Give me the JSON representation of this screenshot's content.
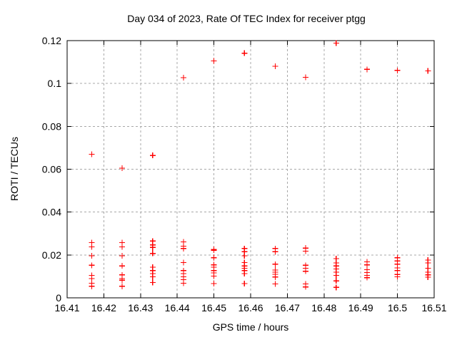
{
  "chart_data": {
    "type": "scatter",
    "title": "Day 034 of 2023, Rate Of TEC Index for receiver ptgg",
    "xlabel": "GPS time / hours",
    "ylabel": "ROTI / TECUs",
    "xlim": [
      16.41,
      16.51
    ],
    "ylim": [
      0,
      0.12
    ],
    "xticks": [
      16.41,
      16.42,
      16.43,
      16.44,
      16.45,
      16.46,
      16.47,
      16.48,
      16.49,
      16.5,
      16.51
    ],
    "xtick_labels": [
      "16.41",
      "16.42",
      "16.43",
      "16.44",
      "16.45",
      "16.46",
      "16.47",
      "16.48",
      "16.49",
      "16.5",
      "16.51"
    ],
    "yticks": [
      0,
      0.02,
      0.04,
      0.06,
      0.08,
      0.1,
      0.12
    ],
    "ytick_labels": [
      "0",
      "0.02",
      "0.04",
      "0.06",
      "0.08",
      "0.1",
      "0.12"
    ],
    "grid": true,
    "grid_style": "dashed",
    "legend": "none",
    "marker": "plus",
    "marker_color": "#ff0000",
    "grid_color": "#a8a8a8",
    "axis_color": "#000000",
    "background_color": "#ffffff",
    "series": [
      {
        "name": "ROTI",
        "points": [
          [
            16.4167,
            0.067
          ],
          [
            16.4167,
            0.0258
          ],
          [
            16.4167,
            0.0238
          ],
          [
            16.4167,
            0.0196
          ],
          [
            16.4167,
            0.0152
          ],
          [
            16.4167,
            0.0105
          ],
          [
            16.4167,
            0.009
          ],
          [
            16.4167,
            0.0068
          ],
          [
            16.4167,
            0.0054
          ],
          [
            16.425,
            0.0605
          ],
          [
            16.425,
            0.0258
          ],
          [
            16.425,
            0.0238
          ],
          [
            16.425,
            0.0196
          ],
          [
            16.425,
            0.0149
          ],
          [
            16.425,
            0.0107
          ],
          [
            16.425,
            0.009
          ],
          [
            16.425,
            0.0082
          ],
          [
            16.425,
            0.0054
          ],
          [
            16.4333,
            0.0664
          ],
          [
            16.4333,
            0.0265
          ],
          [
            16.4333,
            0.0247
          ],
          [
            16.4333,
            0.0235
          ],
          [
            16.4333,
            0.0207
          ],
          [
            16.4333,
            0.0143
          ],
          [
            16.4333,
            0.0127
          ],
          [
            16.4333,
            0.0113
          ],
          [
            16.4333,
            0.0098
          ],
          [
            16.4333,
            0.0071
          ],
          [
            16.4417,
            0.1027
          ],
          [
            16.4417,
            0.0261
          ],
          [
            16.4417,
            0.0241
          ],
          [
            16.4417,
            0.023
          ],
          [
            16.4417,
            0.0165
          ],
          [
            16.4417,
            0.0127
          ],
          [
            16.4417,
            0.0113
          ],
          [
            16.4417,
            0.0098
          ],
          [
            16.4417,
            0.0085
          ],
          [
            16.4417,
            0.0068
          ],
          [
            16.45,
            0.1105
          ],
          [
            16.45,
            0.0226
          ],
          [
            16.45,
            0.0222
          ],
          [
            16.45,
            0.0187
          ],
          [
            16.45,
            0.0154
          ],
          [
            16.45,
            0.0143
          ],
          [
            16.45,
            0.0127
          ],
          [
            16.45,
            0.0116
          ],
          [
            16.45,
            0.0101
          ],
          [
            16.45,
            0.0066
          ],
          [
            16.4583,
            0.1141
          ],
          [
            16.4583,
            0.023
          ],
          [
            16.4583,
            0.0215
          ],
          [
            16.4583,
            0.0196
          ],
          [
            16.4583,
            0.0165
          ],
          [
            16.4583,
            0.0149
          ],
          [
            16.4583,
            0.0138
          ],
          [
            16.4583,
            0.0127
          ],
          [
            16.4583,
            0.0113
          ],
          [
            16.4583,
            0.0066
          ],
          [
            16.4667,
            0.108
          ],
          [
            16.4667,
            0.023
          ],
          [
            16.4667,
            0.0215
          ],
          [
            16.4667,
            0.0157
          ],
          [
            16.4667,
            0.013
          ],
          [
            16.4667,
            0.012
          ],
          [
            16.4667,
            0.011
          ],
          [
            16.4667,
            0.0097
          ],
          [
            16.4667,
            0.0065
          ],
          [
            16.475,
            0.1029
          ],
          [
            16.475,
            0.0232
          ],
          [
            16.475,
            0.0218
          ],
          [
            16.475,
            0.0152
          ],
          [
            16.475,
            0.0138
          ],
          [
            16.475,
            0.0124
          ],
          [
            16.475,
            0.0065
          ],
          [
            16.475,
            0.0051
          ],
          [
            16.4833,
            0.1188
          ],
          [
            16.4833,
            0.0183
          ],
          [
            16.4833,
            0.0163
          ],
          [
            16.4833,
            0.0149
          ],
          [
            16.4833,
            0.0135
          ],
          [
            16.4833,
            0.012
          ],
          [
            16.4833,
            0.0105
          ],
          [
            16.4833,
            0.0079
          ],
          [
            16.4833,
            0.0049
          ],
          [
            16.4917,
            0.1066
          ],
          [
            16.4917,
            0.0168
          ],
          [
            16.4917,
            0.0154
          ],
          [
            16.4917,
            0.0131
          ],
          [
            16.4917,
            0.0118
          ],
          [
            16.4917,
            0.0105
          ],
          [
            16.4917,
            0.0094
          ],
          [
            16.5,
            0.1061
          ],
          [
            16.5,
            0.0187
          ],
          [
            16.5,
            0.0172
          ],
          [
            16.5,
            0.0157
          ],
          [
            16.5,
            0.014
          ],
          [
            16.5,
            0.0127
          ],
          [
            16.5,
            0.0109
          ],
          [
            16.5,
            0.0098
          ],
          [
            16.5083,
            0.1059
          ],
          [
            16.5083,
            0.0176
          ],
          [
            16.5083,
            0.0163
          ],
          [
            16.5083,
            0.0138
          ],
          [
            16.5083,
            0.012
          ],
          [
            16.5083,
            0.0107
          ],
          [
            16.5083,
            0.0096
          ]
        ]
      }
    ]
  }
}
